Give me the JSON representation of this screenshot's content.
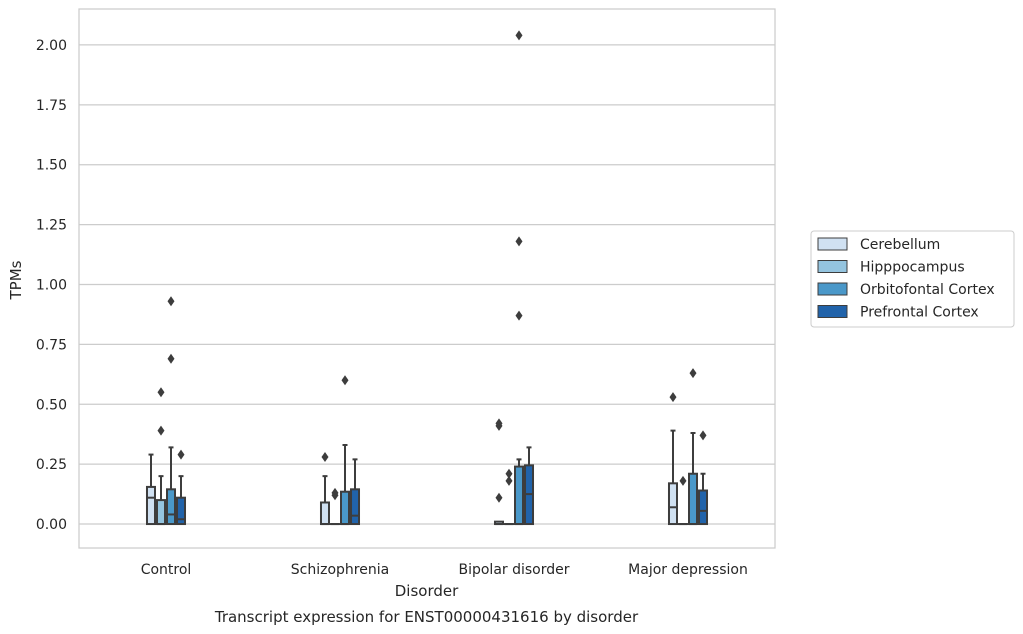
{
  "chart_data": {
    "type": "boxplot",
    "caption": "Transcript expression for ENST00000431616 by disorder",
    "xlabel": "Disorder",
    "ylabel": "TPMs",
    "ylim": [
      -0.1,
      2.15
    ],
    "yticks": [
      0.0,
      0.25,
      0.5,
      0.75,
      1.0,
      1.25,
      1.5,
      1.75,
      2.0
    ],
    "ytick_labels": [
      "0.00",
      "0.25",
      "0.50",
      "0.75",
      "1.00",
      "1.25",
      "1.50",
      "1.75",
      "2.00"
    ],
    "grid": "horizontal",
    "legend_position": "right",
    "categories": [
      "Control",
      "Schizophrenia",
      "Bipolar disorder",
      "Major depression"
    ],
    "series": [
      {
        "name": "Cerebellum",
        "color": "#d0e1f2",
        "boxes": [
          {
            "whisker_low": 0.0,
            "q1": 0.0,
            "median": 0.11,
            "q3": 0.155,
            "whisker_high": 0.29,
            "outliers": []
          },
          {
            "whisker_low": 0.0,
            "q1": 0.0,
            "median": 0.0,
            "q3": 0.09,
            "whisker_high": 0.2,
            "outliers": [
              0.28
            ]
          },
          {
            "whisker_low": 0.0,
            "q1": 0.0,
            "median": 0.0,
            "q3": 0.01,
            "whisker_high": 0.01,
            "outliers": [
              0.11,
              0.41,
              0.42
            ]
          },
          {
            "whisker_low": 0.0,
            "q1": 0.0,
            "median": 0.07,
            "q3": 0.17,
            "whisker_high": 0.39,
            "outliers": [
              0.53
            ]
          }
        ]
      },
      {
        "name": "Hipppocampus",
        "color": "#94c4df",
        "boxes": [
          {
            "whisker_low": 0.0,
            "q1": 0.0,
            "median": 0.0,
            "q3": 0.1,
            "whisker_high": 0.2,
            "outliers": [
              0.39,
              0.55
            ]
          },
          {
            "whisker_low": 0.0,
            "q1": 0.0,
            "median": 0.0,
            "q3": 0.0,
            "whisker_high": 0.0,
            "outliers": [
              0.12,
              0.13
            ]
          },
          {
            "whisker_low": 0.0,
            "q1": 0.0,
            "median": 0.0,
            "q3": 0.0,
            "whisker_high": 0.0,
            "outliers": [
              0.18,
              0.21
            ]
          },
          {
            "whisker_low": 0.0,
            "q1": 0.0,
            "median": 0.0,
            "q3": 0.0,
            "whisker_high": 0.0,
            "outliers": [
              0.18
            ]
          }
        ]
      },
      {
        "name": "Orbitofontal Cortex",
        "color": "#4a98c9",
        "boxes": [
          {
            "whisker_low": 0.0,
            "q1": 0.0,
            "median": 0.04,
            "q3": 0.145,
            "whisker_high": 0.32,
            "outliers": [
              0.69,
              0.93
            ]
          },
          {
            "whisker_low": 0.0,
            "q1": 0.0,
            "median": 0.0,
            "q3": 0.135,
            "whisker_high": 0.33,
            "outliers": [
              0.6
            ]
          },
          {
            "whisker_low": 0.0,
            "q1": 0.0,
            "median": 0.0,
            "q3": 0.24,
            "whisker_high": 0.27,
            "outliers": [
              0.87,
              1.18,
              2.04
            ]
          },
          {
            "whisker_low": 0.0,
            "q1": 0.0,
            "median": 0.0,
            "q3": 0.21,
            "whisker_high": 0.38,
            "outliers": [
              0.63
            ]
          }
        ]
      },
      {
        "name": "Prefrontal Cortex",
        "color": "#2163aa",
        "boxes": [
          {
            "whisker_low": 0.0,
            "q1": 0.0,
            "median": 0.02,
            "q3": 0.11,
            "whisker_high": 0.2,
            "outliers": [
              0.29
            ]
          },
          {
            "whisker_low": 0.0,
            "q1": 0.0,
            "median": 0.035,
            "q3": 0.145,
            "whisker_high": 0.27,
            "outliers": []
          },
          {
            "whisker_low": 0.0,
            "q1": 0.0,
            "median": 0.125,
            "q3": 0.245,
            "whisker_high": 0.32,
            "outliers": []
          },
          {
            "whisker_low": 0.0,
            "q1": 0.0,
            "median": 0.055,
            "q3": 0.14,
            "whisker_high": 0.21,
            "outliers": [
              0.37
            ]
          }
        ]
      }
    ]
  }
}
